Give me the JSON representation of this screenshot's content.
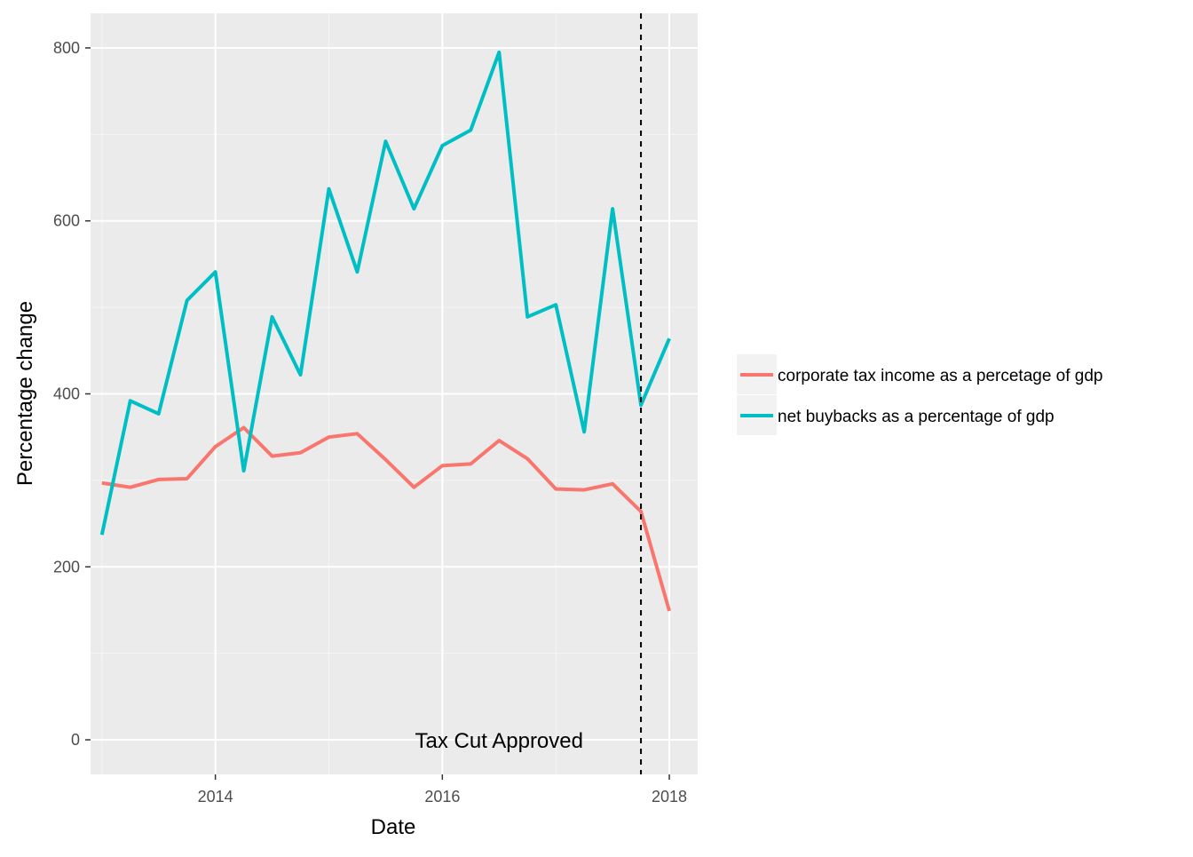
{
  "chart_data": {
    "type": "line",
    "xlabel": "Date",
    "ylabel": "Percentage change",
    "xlim": [
      2012.9,
      2018.25
    ],
    "ylim": [
      -40,
      840
    ],
    "x_ticks": [
      2014,
      2016,
      2018
    ],
    "x_tick_labels": [
      "2014",
      "2016",
      "2018"
    ],
    "y_ticks": [
      0,
      200,
      400,
      600,
      800
    ],
    "y_tick_labels": [
      "0",
      "200",
      "400",
      "600",
      "800"
    ],
    "grid": true,
    "legend_position": "right",
    "x": [
      2013.0,
      2013.25,
      2013.5,
      2013.75,
      2014.0,
      2014.25,
      2014.5,
      2014.75,
      2015.0,
      2015.25,
      2015.5,
      2015.75,
      2016.0,
      2016.25,
      2016.5,
      2016.75,
      2017.0,
      2017.25,
      2017.5,
      2017.75,
      2018.0
    ],
    "series": [
      {
        "name": "corporate tax income as a percetage of gdp",
        "color": "#F8766D",
        "values": [
          297,
          292,
          301,
          302,
          339,
          361,
          328,
          332,
          350,
          354,
          324,
          292,
          317,
          319,
          346,
          325,
          290,
          289,
          296,
          264,
          149
        ]
      },
      {
        "name": "net buybacks as a percentage of gdp",
        "color": "#00BFC4",
        "values": [
          237,
          392,
          377,
          508,
          541,
          311,
          489,
          422,
          637,
          541,
          692,
          614,
          687,
          705,
          795,
          489,
          503,
          356,
          614,
          387,
          464
        ]
      }
    ],
    "vline": {
      "x": 2017.75,
      "style": "dashed",
      "color": "#000000"
    },
    "annotations": [
      {
        "text": "Tax Cut Approved",
        "x": 2016.5,
        "y": 0
      }
    ]
  },
  "colors": {
    "panel_background": "#EBEBEB",
    "grid_major": "#FFFFFF",
    "grid_minor": "#F5F5F5"
  }
}
